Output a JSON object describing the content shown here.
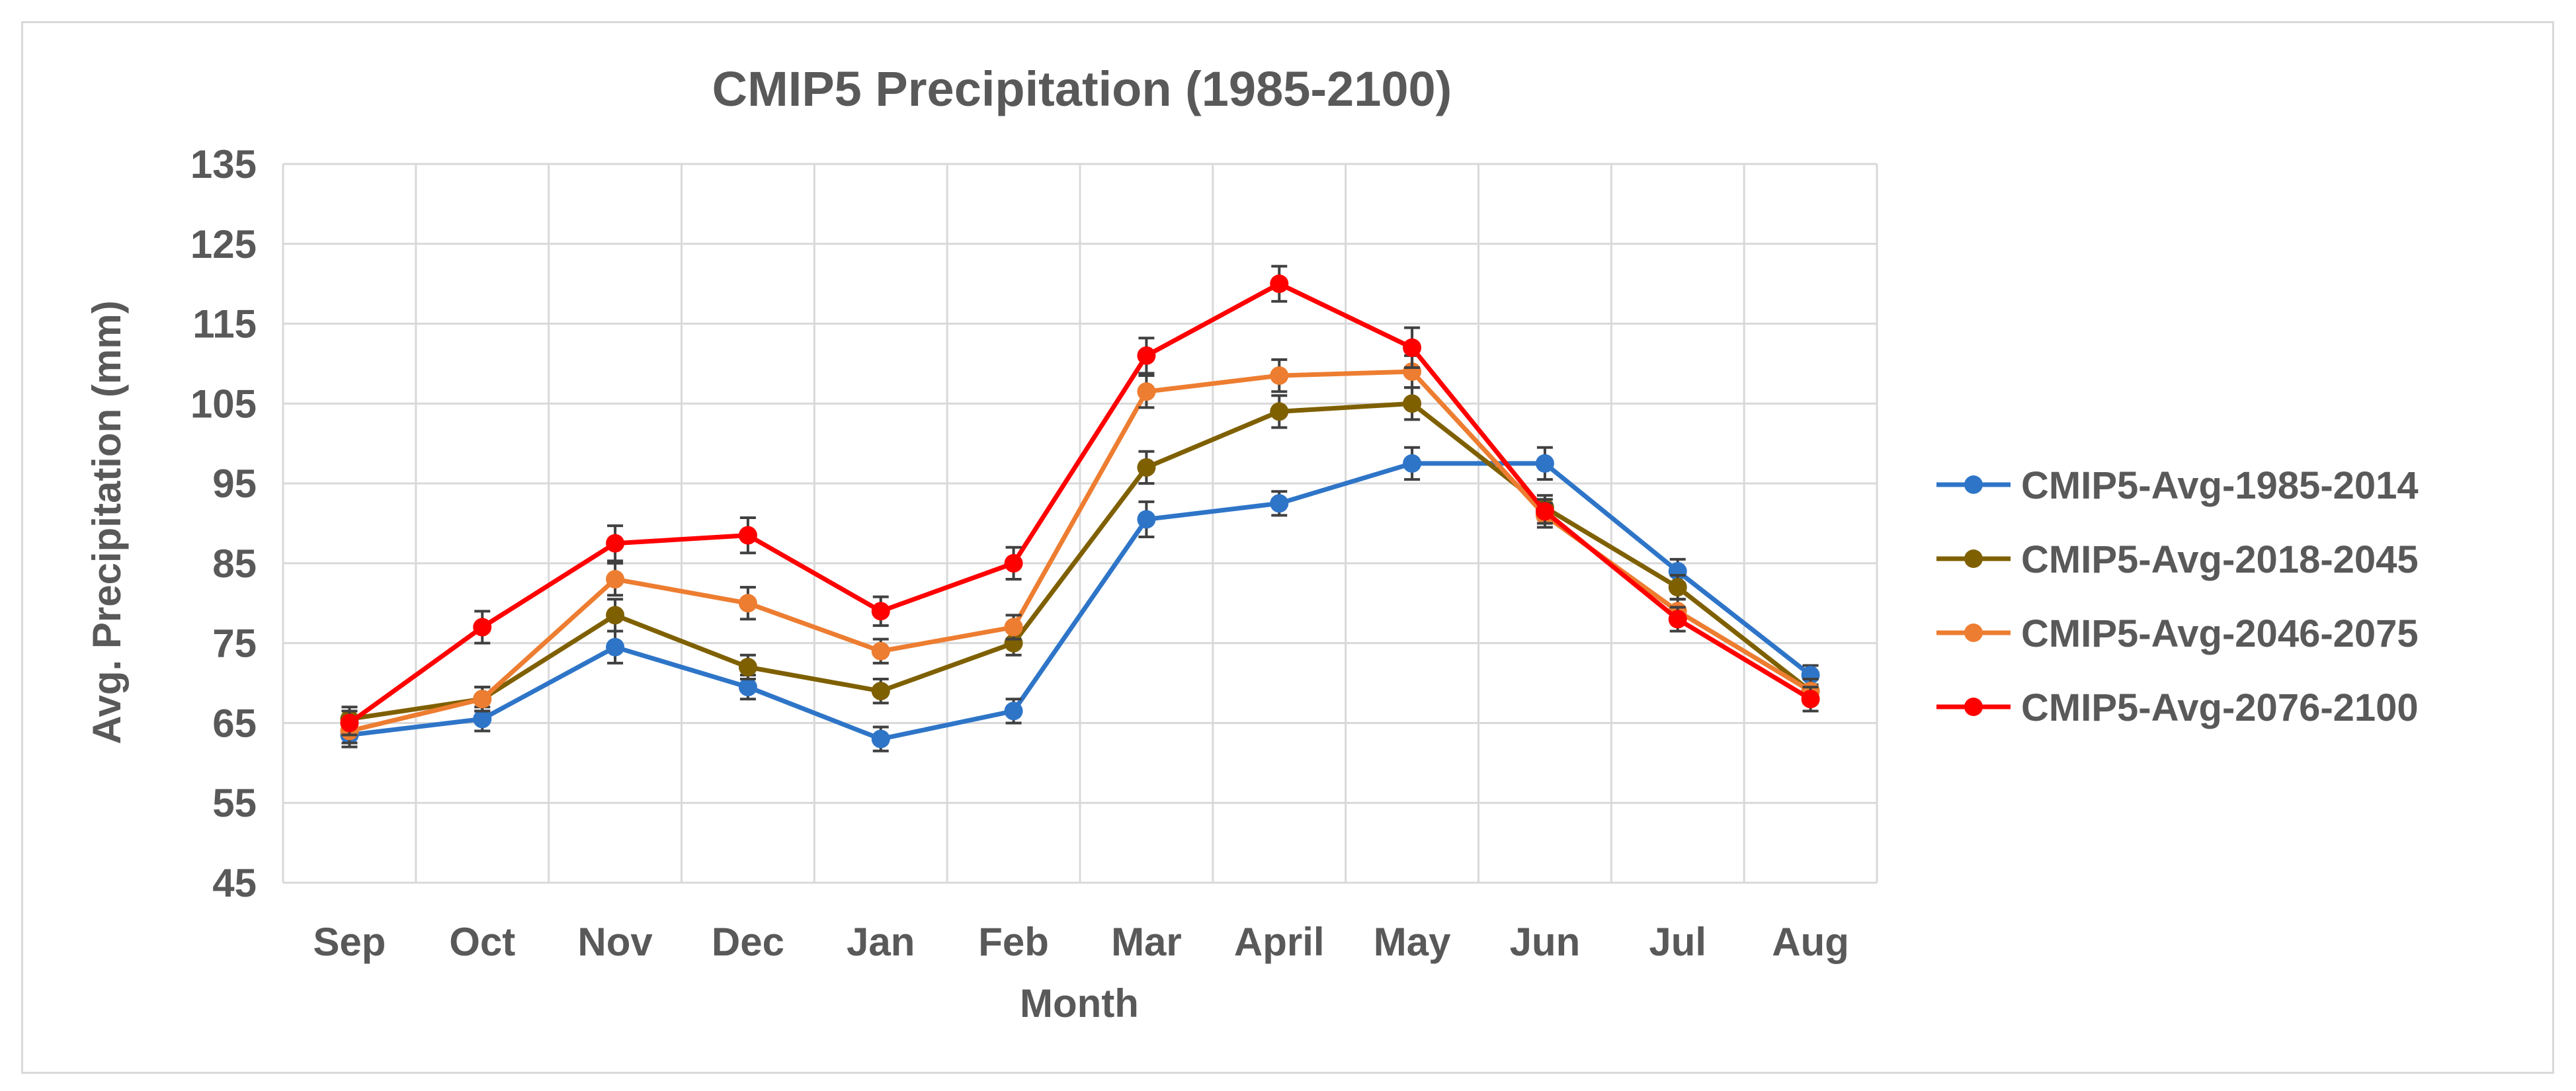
{
  "chart_data": {
    "type": "line",
    "title": "CMIP5 Precipitation (1985-2100)",
    "xlabel": "Month",
    "ylabel": "Avg. Precipitation (mm)",
    "ylim": [
      45,
      135
    ],
    "yticks": [
      45,
      55,
      65,
      75,
      85,
      95,
      105,
      115,
      125,
      135
    ],
    "grid": true,
    "legend_position": "right",
    "categories": [
      "Sep",
      "Oct",
      "Nov",
      "Dec",
      "Jan",
      "Feb",
      "Mar",
      "April",
      "May",
      "Jun",
      "Jul",
      "Aug"
    ],
    "series": [
      {
        "name": "CMIP5-Avg-1985-2014",
        "color": "#2E75C8",
        "values": [
          63.5,
          65.5,
          74.5,
          69.5,
          63,
          66.5,
          90.5,
          92.5,
          97.5,
          97.5,
          84,
          71
        ],
        "error": [
          1.5,
          1.5,
          2,
          1.5,
          1.5,
          1.5,
          2.2,
          1.5,
          2,
          2,
          1.5,
          1.2
        ]
      },
      {
        "name": "CMIP5-Avg-2018-2045",
        "color": "#7F6000",
        "values": [
          65.5,
          68,
          78.5,
          72,
          69,
          75,
          97,
          104,
          105,
          92,
          82,
          69
        ],
        "error": [
          1.5,
          1.5,
          2,
          1.5,
          1.5,
          1.5,
          2,
          2,
          2,
          1.5,
          1.5,
          1.5
        ]
      },
      {
        "name": "CMIP5-Avg-2046-2075",
        "color": "#ED7D31",
        "values": [
          64,
          68,
          83,
          80,
          74,
          77,
          106.5,
          108.5,
          109,
          91,
          79,
          69
        ],
        "error": [
          1.5,
          1.5,
          2,
          2,
          1.5,
          1.5,
          2,
          2,
          2,
          1.5,
          1.5,
          1.5
        ]
      },
      {
        "name": "CMIP5-Avg-2076-2100",
        "color": "#FF0000",
        "values": [
          65,
          77,
          87.5,
          88.5,
          79,
          85,
          111,
          120,
          112,
          91.5,
          78,
          68
        ],
        "error": [
          1.5,
          2,
          2.2,
          2.2,
          1.8,
          2,
          2.2,
          2.2,
          2.5,
          1.5,
          1.5,
          1.5
        ]
      }
    ]
  }
}
